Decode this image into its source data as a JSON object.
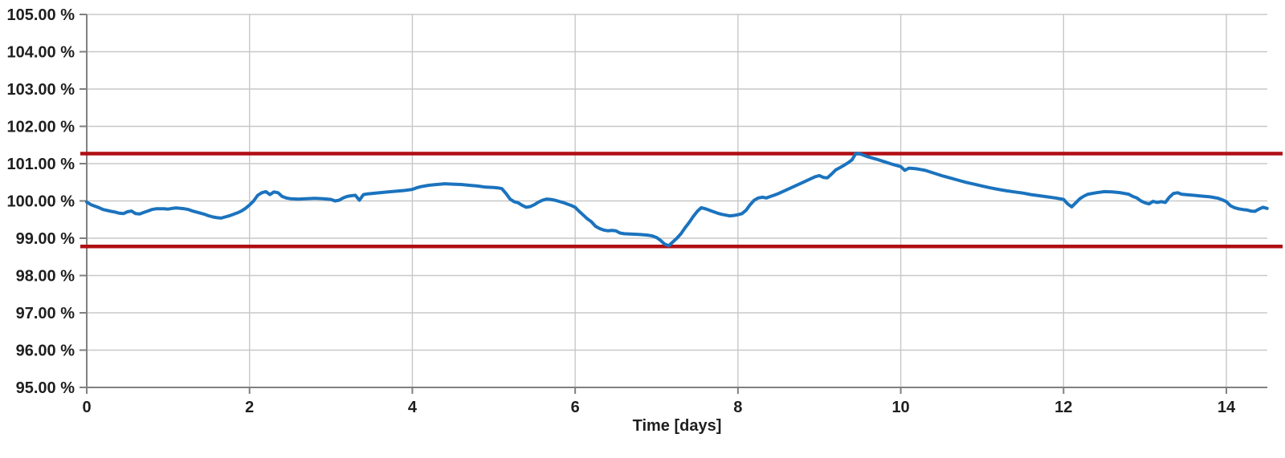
{
  "chart_data": {
    "type": "line",
    "title": "",
    "xlabel": "Time [days]",
    "ylabel": "",
    "xlim": [
      0,
      14.5
    ],
    "ylim": [
      95,
      105
    ],
    "grid": true,
    "legend": "none",
    "x_tick_values": [
      0,
      2,
      4,
      6,
      8,
      10,
      12,
      14
    ],
    "x_tick_labels": [
      "0",
      "2",
      "4",
      "6",
      "8",
      "10",
      "12",
      "14"
    ],
    "y_tick_values": [
      105,
      104,
      103,
      102,
      101,
      100,
      99,
      98,
      97,
      96,
      95
    ],
    "y_tick_labels": [
      "105.00 %",
      "104.00 %",
      "103.00 %",
      "102.00 %",
      "101.00 %",
      "100.00 %",
      "99.00 %",
      "98.00 %",
      "97.00 %",
      "96.00 %",
      "95.00 %"
    ],
    "colors": {
      "series": "#1b73be",
      "limit": "#b00f12",
      "grid": "#c8c8c8",
      "axis": "#808080",
      "text": "#1f1f1f"
    },
    "limit_lines": [
      {
        "name": "upper-limit",
        "value": 101.27
      },
      {
        "name": "lower-limit",
        "value": 98.78
      }
    ],
    "series": [
      {
        "name": "relative-signal",
        "points": [
          [
            0,
            99.97
          ],
          [
            0.05,
            99.9
          ],
          [
            0.1,
            99.86
          ],
          [
            0.15,
            99.82
          ],
          [
            0.2,
            99.77
          ],
          [
            0.3,
            99.72
          ],
          [
            0.35,
            99.7
          ],
          [
            0.4,
            99.67
          ],
          [
            0.45,
            99.66
          ],
          [
            0.5,
            99.71
          ],
          [
            0.55,
            99.73
          ],
          [
            0.6,
            99.66
          ],
          [
            0.65,
            99.65
          ],
          [
            0.7,
            99.69
          ],
          [
            0.75,
            99.73
          ],
          [
            0.8,
            99.77
          ],
          [
            0.85,
            99.79
          ],
          [
            0.95,
            99.79
          ],
          [
            1.0,
            99.78
          ],
          [
            1.05,
            99.8
          ],
          [
            1.1,
            99.81
          ],
          [
            1.15,
            99.8
          ],
          [
            1.2,
            99.79
          ],
          [
            1.25,
            99.77
          ],
          [
            1.3,
            99.73
          ],
          [
            1.35,
            99.7
          ],
          [
            1.4,
            99.67
          ],
          [
            1.45,
            99.64
          ],
          [
            1.5,
            99.6
          ],
          [
            1.55,
            99.57
          ],
          [
            1.6,
            99.55
          ],
          [
            1.65,
            99.54
          ],
          [
            1.7,
            99.57
          ],
          [
            1.75,
            99.6
          ],
          [
            1.8,
            99.64
          ],
          [
            1.85,
            99.68
          ],
          [
            1.9,
            99.73
          ],
          [
            1.95,
            99.8
          ],
          [
            2.0,
            99.89
          ],
          [
            2.05,
            100.0
          ],
          [
            2.1,
            100.15
          ],
          [
            2.15,
            100.22
          ],
          [
            2.2,
            100.25
          ],
          [
            2.25,
            100.17
          ],
          [
            2.3,
            100.24
          ],
          [
            2.35,
            100.22
          ],
          [
            2.4,
            100.12
          ],
          [
            2.45,
            100.08
          ],
          [
            2.5,
            100.06
          ],
          [
            2.6,
            100.05
          ],
          [
            2.7,
            100.06
          ],
          [
            2.8,
            100.07
          ],
          [
            2.9,
            100.06
          ],
          [
            3.0,
            100.04
          ],
          [
            3.05,
            100.0
          ],
          [
            3.1,
            100.02
          ],
          [
            3.15,
            100.08
          ],
          [
            3.2,
            100.12
          ],
          [
            3.25,
            100.14
          ],
          [
            3.3,
            100.15
          ],
          [
            3.35,
            100.02
          ],
          [
            3.4,
            100.17
          ],
          [
            3.45,
            100.19
          ],
          [
            3.5,
            100.2
          ],
          [
            3.6,
            100.22
          ],
          [
            3.7,
            100.24
          ],
          [
            3.8,
            100.26
          ],
          [
            3.9,
            100.28
          ],
          [
            4.0,
            100.31
          ],
          [
            4.05,
            100.35
          ],
          [
            4.1,
            100.38
          ],
          [
            4.2,
            100.42
          ],
          [
            4.3,
            100.44
          ],
          [
            4.4,
            100.46
          ],
          [
            4.5,
            100.45
          ],
          [
            4.6,
            100.44
          ],
          [
            4.7,
            100.42
          ],
          [
            4.8,
            100.4
          ],
          [
            4.9,
            100.37
          ],
          [
            5.0,
            100.36
          ],
          [
            5.05,
            100.35
          ],
          [
            5.1,
            100.33
          ],
          [
            5.15,
            100.2
          ],
          [
            5.2,
            100.05
          ],
          [
            5.25,
            99.98
          ],
          [
            5.3,
            99.95
          ],
          [
            5.35,
            99.88
          ],
          [
            5.4,
            99.83
          ],
          [
            5.45,
            99.85
          ],
          [
            5.5,
            99.9
          ],
          [
            5.55,
            99.97
          ],
          [
            5.6,
            100.02
          ],
          [
            5.65,
            100.05
          ],
          [
            5.7,
            100.04
          ],
          [
            5.75,
            100.02
          ],
          [
            5.8,
            99.99
          ],
          [
            5.85,
            99.96
          ],
          [
            5.9,
            99.92
          ],
          [
            5.95,
            99.88
          ],
          [
            6.0,
            99.83
          ],
          [
            6.05,
            99.72
          ],
          [
            6.1,
            99.62
          ],
          [
            6.15,
            99.52
          ],
          [
            6.2,
            99.44
          ],
          [
            6.25,
            99.32
          ],
          [
            6.3,
            99.26
          ],
          [
            6.35,
            99.22
          ],
          [
            6.4,
            99.2
          ],
          [
            6.45,
            99.21
          ],
          [
            6.5,
            99.2
          ],
          [
            6.55,
            99.14
          ],
          [
            6.6,
            99.12
          ],
          [
            6.7,
            99.11
          ],
          [
            6.8,
            99.1
          ],
          [
            6.9,
            99.08
          ],
          [
            6.95,
            99.06
          ],
          [
            7.0,
            99.02
          ],
          [
            7.05,
            98.94
          ],
          [
            7.1,
            98.84
          ],
          [
            7.15,
            98.8
          ],
          [
            7.2,
            98.9
          ],
          [
            7.25,
            99.0
          ],
          [
            7.3,
            99.12
          ],
          [
            7.35,
            99.28
          ],
          [
            7.4,
            99.42
          ],
          [
            7.45,
            99.58
          ],
          [
            7.5,
            99.72
          ],
          [
            7.55,
            99.82
          ],
          [
            7.6,
            99.79
          ],
          [
            7.65,
            99.75
          ],
          [
            7.7,
            99.71
          ],
          [
            7.75,
            99.67
          ],
          [
            7.8,
            99.64
          ],
          [
            7.85,
            99.62
          ],
          [
            7.9,
            99.6
          ],
          [
            7.95,
            99.61
          ],
          [
            8.0,
            99.63
          ],
          [
            8.05,
            99.66
          ],
          [
            8.1,
            99.75
          ],
          [
            8.15,
            99.9
          ],
          [
            8.2,
            100.02
          ],
          [
            8.25,
            100.08
          ],
          [
            8.3,
            100.1
          ],
          [
            8.35,
            100.08
          ],
          [
            8.4,
            100.12
          ],
          [
            8.45,
            100.16
          ],
          [
            8.5,
            100.2
          ],
          [
            8.6,
            100.3
          ],
          [
            8.7,
            100.4
          ],
          [
            8.8,
            100.5
          ],
          [
            8.9,
            100.6
          ],
          [
            8.95,
            100.65
          ],
          [
            9.0,
            100.68
          ],
          [
            9.05,
            100.63
          ],
          [
            9.1,
            100.62
          ],
          [
            9.15,
            100.72
          ],
          [
            9.2,
            100.83
          ],
          [
            9.25,
            100.89
          ],
          [
            9.3,
            100.95
          ],
          [
            9.35,
            101.02
          ],
          [
            9.4,
            101.1
          ],
          [
            9.45,
            101.28
          ],
          [
            9.5,
            101.26
          ],
          [
            9.55,
            101.22
          ],
          [
            9.6,
            101.18
          ],
          [
            9.7,
            101.12
          ],
          [
            9.8,
            101.05
          ],
          [
            9.9,
            100.98
          ],
          [
            10.0,
            100.92
          ],
          [
            10.05,
            100.82
          ],
          [
            10.1,
            100.88
          ],
          [
            10.15,
            100.87
          ],
          [
            10.2,
            100.86
          ],
          [
            10.3,
            100.82
          ],
          [
            10.4,
            100.75
          ],
          [
            10.5,
            100.68
          ],
          [
            10.6,
            100.62
          ],
          [
            10.7,
            100.56
          ],
          [
            10.8,
            100.5
          ],
          [
            10.9,
            100.45
          ],
          [
            11.0,
            100.4
          ],
          [
            11.1,
            100.35
          ],
          [
            11.2,
            100.31
          ],
          [
            11.3,
            100.27
          ],
          [
            11.4,
            100.24
          ],
          [
            11.5,
            100.21
          ],
          [
            11.6,
            100.17
          ],
          [
            11.7,
            100.14
          ],
          [
            11.8,
            100.11
          ],
          [
            11.9,
            100.08
          ],
          [
            12.0,
            100.04
          ],
          [
            12.05,
            99.92
          ],
          [
            12.1,
            99.84
          ],
          [
            12.15,
            99.95
          ],
          [
            12.2,
            100.06
          ],
          [
            12.25,
            100.13
          ],
          [
            12.3,
            100.18
          ],
          [
            12.4,
            100.22
          ],
          [
            12.5,
            100.25
          ],
          [
            12.6,
            100.24
          ],
          [
            12.7,
            100.22
          ],
          [
            12.8,
            100.18
          ],
          [
            12.85,
            100.12
          ],
          [
            12.9,
            100.08
          ],
          [
            12.95,
            100.0
          ],
          [
            13.0,
            99.95
          ],
          [
            13.05,
            99.92
          ],
          [
            13.1,
            99.99
          ],
          [
            13.15,
            99.96
          ],
          [
            13.2,
            99.98
          ],
          [
            13.25,
            99.96
          ],
          [
            13.3,
            100.1
          ],
          [
            13.35,
            100.2
          ],
          [
            13.4,
            100.22
          ],
          [
            13.45,
            100.18
          ],
          [
            13.5,
            100.17
          ],
          [
            13.6,
            100.15
          ],
          [
            13.7,
            100.13
          ],
          [
            13.8,
            100.11
          ],
          [
            13.9,
            100.07
          ],
          [
            13.95,
            100.03
          ],
          [
            14.0,
            99.98
          ],
          [
            14.05,
            99.87
          ],
          [
            14.1,
            99.82
          ],
          [
            14.15,
            99.79
          ],
          [
            14.2,
            99.77
          ],
          [
            14.25,
            99.76
          ],
          [
            14.3,
            99.73
          ],
          [
            14.35,
            99.72
          ],
          [
            14.4,
            99.78
          ],
          [
            14.45,
            99.83
          ],
          [
            14.5,
            99.8
          ]
        ]
      }
    ]
  }
}
